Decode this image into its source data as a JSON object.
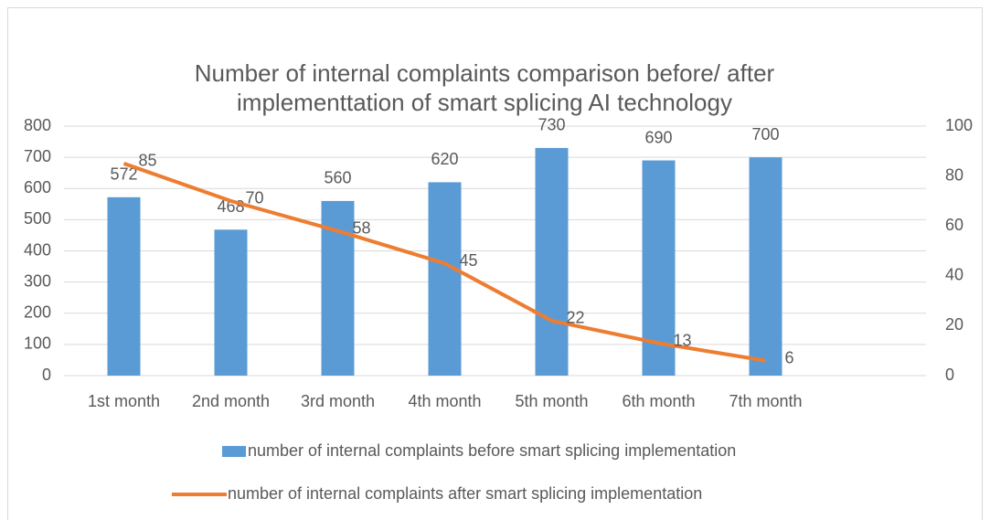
{
  "chart_data": {
    "type": "combo",
    "title": [
      "Number of internal complaints comparison before/ after",
      "implementtation of smart splicing AI technology"
    ],
    "categories": [
      "1st month",
      "2nd month",
      "3rd month",
      "4th month",
      "5th month",
      "6th month",
      "7th month",
      null
    ],
    "series": [
      {
        "name": "number of internal complaints before smart splicing implementation",
        "type": "bar",
        "color": "#5b9bd5",
        "values": [
          572,
          468,
          560,
          620,
          730,
          690,
          700,
          null
        ]
      },
      {
        "name": "number of internal complaints after smart splicing implementation",
        "type": "line",
        "axis": "y2",
        "color": "#ed7d31",
        "values": [
          85,
          70,
          58,
          45,
          22,
          13,
          6,
          null
        ]
      }
    ],
    "ylim": [
      0,
      800
    ],
    "yticks": [
      0,
      100,
      200,
      300,
      400,
      500,
      600,
      700,
      800
    ],
    "y2lim": [
      0,
      100
    ],
    "y2ticks": [
      0,
      20,
      40,
      60,
      80,
      100
    ],
    "grid": true,
    "legend": "bottom"
  }
}
